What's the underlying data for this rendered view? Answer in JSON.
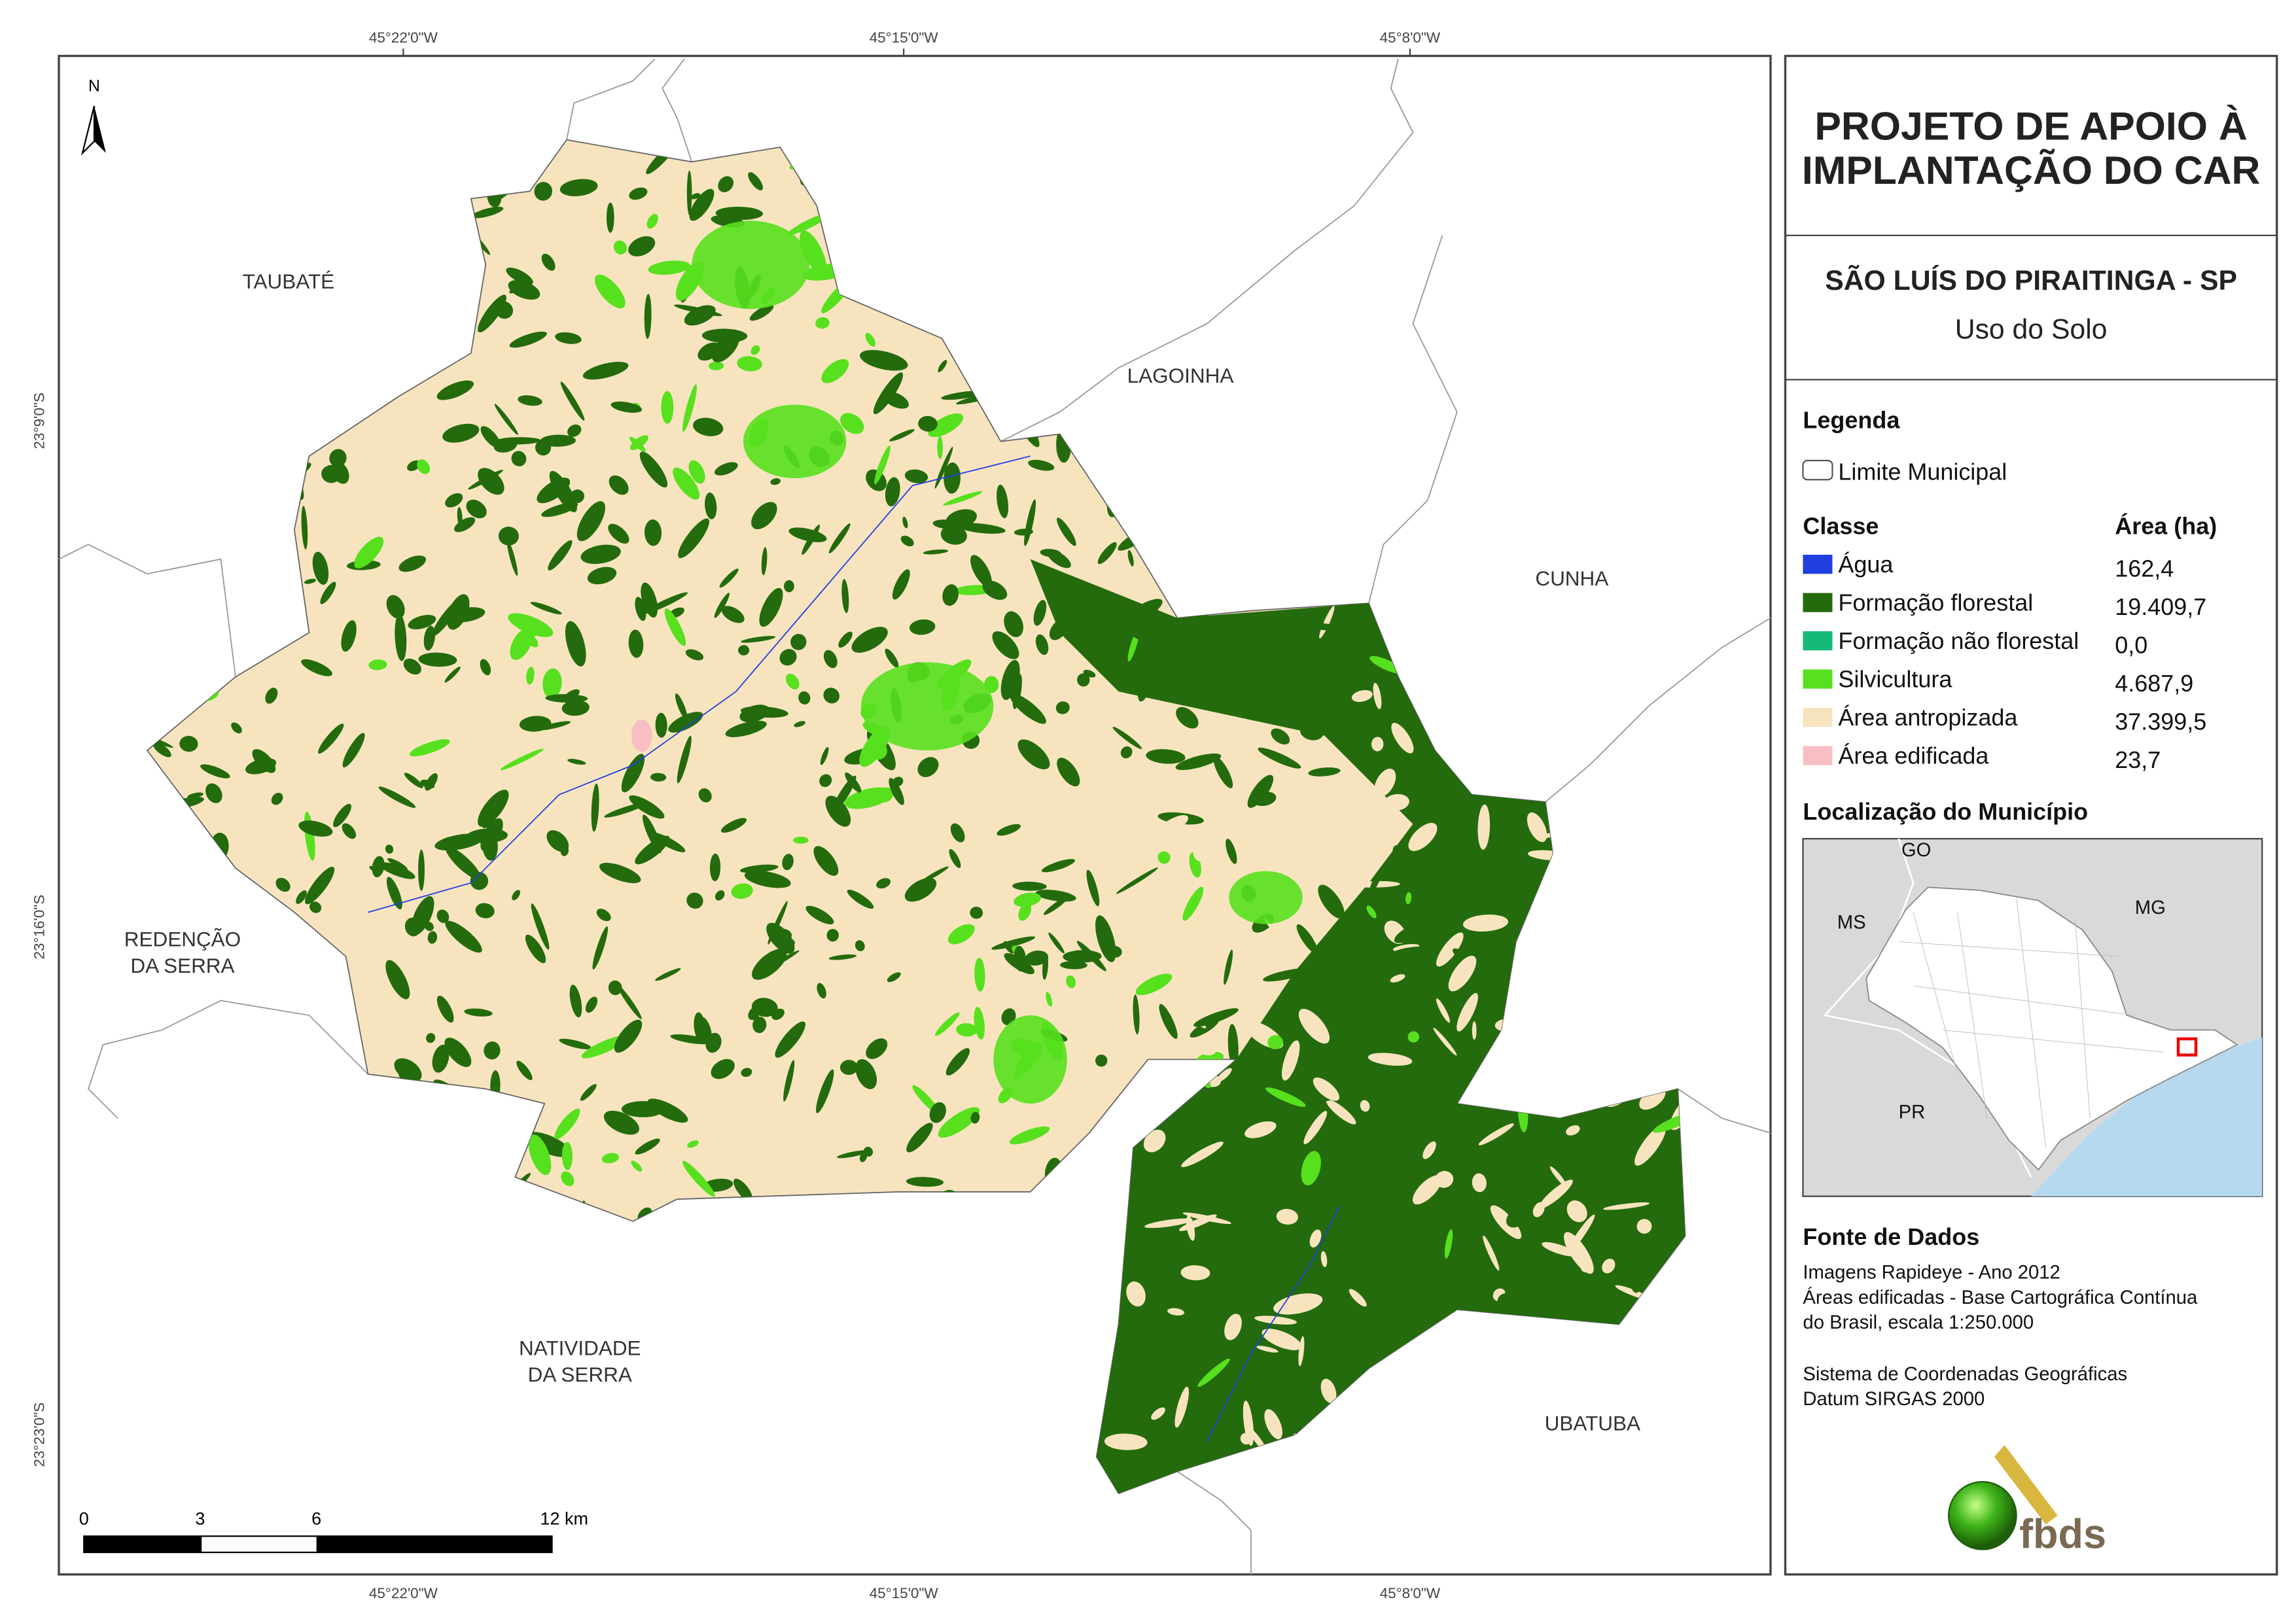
{
  "map": {
    "grid_labels": {
      "top": [
        "45°22'0\"W",
        "45°15'0\"W",
        "45°8'0\"W"
      ],
      "bottom": [
        "45°22'0\"W",
        "45°15'0\"W",
        "45°8'0\"W"
      ],
      "left": [
        "23°9'0\"S",
        "23°16'0\"S",
        "23°23'0\"S"
      ]
    },
    "north": "N",
    "neighbors": [
      {
        "lines": [
          "TAUBATÉ"
        ]
      },
      {
        "lines": [
          "LAGOINHA"
        ]
      },
      {
        "lines": [
          "CUNHA"
        ]
      },
      {
        "lines": [
          "REDENÇÃO",
          "DA SERRA"
        ]
      },
      {
        "lines": [
          "NATIVIDADE",
          "DA SERRA"
        ]
      },
      {
        "lines": [
          "UBATUBA"
        ]
      }
    ],
    "scale_bar": {
      "labels": [
        "0",
        "3",
        "6",
        "12 km"
      ]
    }
  },
  "panel": {
    "title_lines": [
      "PROJETO DE APOIO À",
      "IMPLANTAÇÃO DO CAR"
    ],
    "municipality": "SÃO LUÍS DO PIRAITINGA - SP",
    "theme": "Uso do Solo",
    "legend": {
      "heading": "Legenda",
      "boundary": "Limite Municipal",
      "class_header": "Classe",
      "area_header": "Área (ha)",
      "classes": [
        {
          "name": "Água",
          "area": "162,4",
          "color": "#1f3fe0"
        },
        {
          "name": "Formação florestal",
          "area": "19.409,7",
          "color": "#236b0c"
        },
        {
          "name": "Formação não florestal",
          "area": "0,0",
          "color": "#14b97a"
        },
        {
          "name": "Silvicultura",
          "area": "4.687,9",
          "color": "#57e01e"
        },
        {
          "name": "Área antropizada",
          "area": "37.399,5",
          "color": "#f7e4bf"
        },
        {
          "name": "Área edificada",
          "area": "23,7",
          "color": "#f7bfc4"
        }
      ]
    },
    "location": {
      "heading": "Localização do Município",
      "labels": [
        "GO",
        "MS",
        "MG",
        "PR"
      ]
    },
    "sources": {
      "heading": "Fonte de Dados",
      "lines": [
        "Imagens Rapideye - Ano 2012",
        "Áreas edificadas - Base Cartográfica Contínua",
        "do Brasil, escala 1:250.000",
        "Sistema de Coordenadas Geográficas",
        "Datum SIRGAS 2000"
      ]
    },
    "logo": "fbds"
  }
}
